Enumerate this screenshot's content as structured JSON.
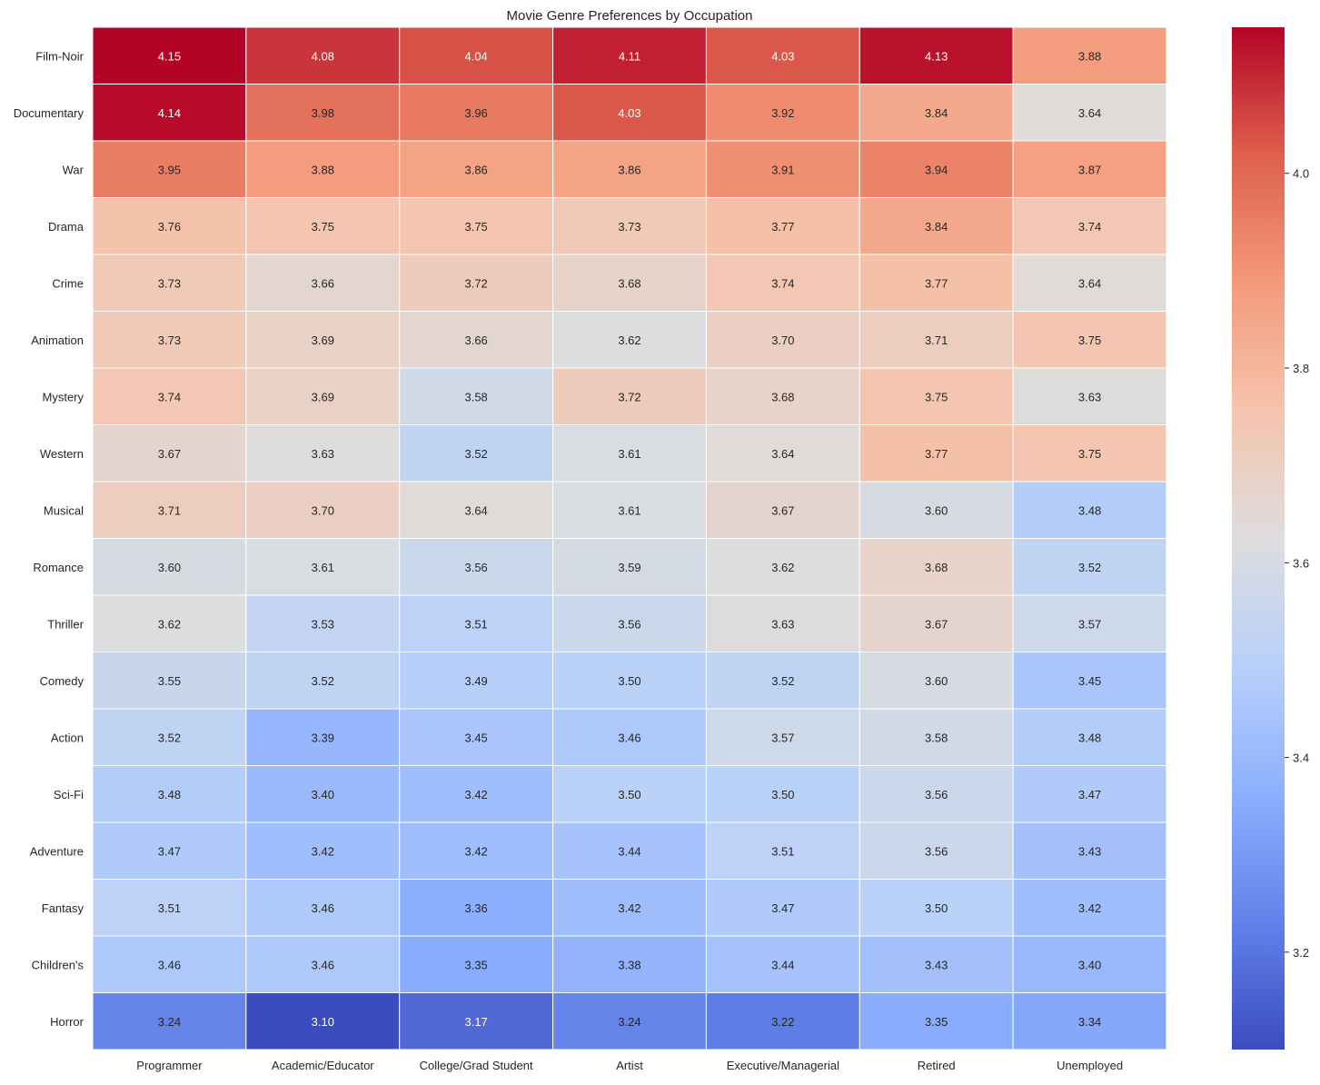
{
  "chart_data": {
    "type": "heatmap",
    "title": "Movie Genre Preferences by Occupation",
    "xlabel": "",
    "ylabel": "",
    "colormap": "coolwarm",
    "rows": [
      "Film-Noir",
      "Documentary",
      "War",
      "Drama",
      "Crime",
      "Animation",
      "Mystery",
      "Western",
      "Musical",
      "Romance",
      "Thriller",
      "Comedy",
      "Action",
      "Sci-Fi",
      "Adventure",
      "Fantasy",
      "Children's",
      "Horror"
    ],
    "columns": [
      "Programmer",
      "Academic/Educator",
      "College/Grad Student",
      "Artist",
      "Executive/Managerial",
      "Retired",
      "Unemployed"
    ],
    "values": [
      [
        4.15,
        4.08,
        4.04,
        4.11,
        4.03,
        4.13,
        3.88
      ],
      [
        4.14,
        3.98,
        3.96,
        4.03,
        3.92,
        3.84,
        3.64
      ],
      [
        3.95,
        3.88,
        3.86,
        3.86,
        3.91,
        3.94,
        3.87
      ],
      [
        3.76,
        3.75,
        3.75,
        3.73,
        3.77,
        3.84,
        3.74
      ],
      [
        3.73,
        3.66,
        3.72,
        3.68,
        3.74,
        3.77,
        3.64
      ],
      [
        3.73,
        3.69,
        3.66,
        3.62,
        3.7,
        3.71,
        3.75
      ],
      [
        3.74,
        3.69,
        3.58,
        3.72,
        3.68,
        3.75,
        3.63
      ],
      [
        3.67,
        3.63,
        3.52,
        3.61,
        3.64,
        3.77,
        3.75
      ],
      [
        3.71,
        3.7,
        3.64,
        3.61,
        3.67,
        3.6,
        3.48
      ],
      [
        3.6,
        3.61,
        3.56,
        3.59,
        3.62,
        3.68,
        3.52
      ],
      [
        3.62,
        3.53,
        3.51,
        3.56,
        3.63,
        3.67,
        3.57
      ],
      [
        3.55,
        3.52,
        3.49,
        3.5,
        3.52,
        3.6,
        3.45
      ],
      [
        3.52,
        3.39,
        3.45,
        3.46,
        3.57,
        3.58,
        3.48
      ],
      [
        3.48,
        3.4,
        3.42,
        3.5,
        3.5,
        3.56,
        3.47
      ],
      [
        3.47,
        3.42,
        3.42,
        3.44,
        3.51,
        3.56,
        3.43
      ],
      [
        3.51,
        3.46,
        3.36,
        3.42,
        3.47,
        3.5,
        3.42
      ],
      [
        3.46,
        3.46,
        3.35,
        3.38,
        3.44,
        3.43,
        3.4
      ],
      [
        3.24,
        3.1,
        3.17,
        3.24,
        3.22,
        3.35,
        3.34
      ]
    ],
    "vmin": 3.1,
    "vmax": 4.15,
    "colorbar_ticks": [
      3.2,
      3.4,
      3.6,
      3.8,
      4.0
    ],
    "colorbar_tick_labels": [
      "3.2",
      "3.4",
      "3.6",
      "3.8",
      "4.0"
    ],
    "annotation_format": "2 decimals",
    "grid": false
  }
}
